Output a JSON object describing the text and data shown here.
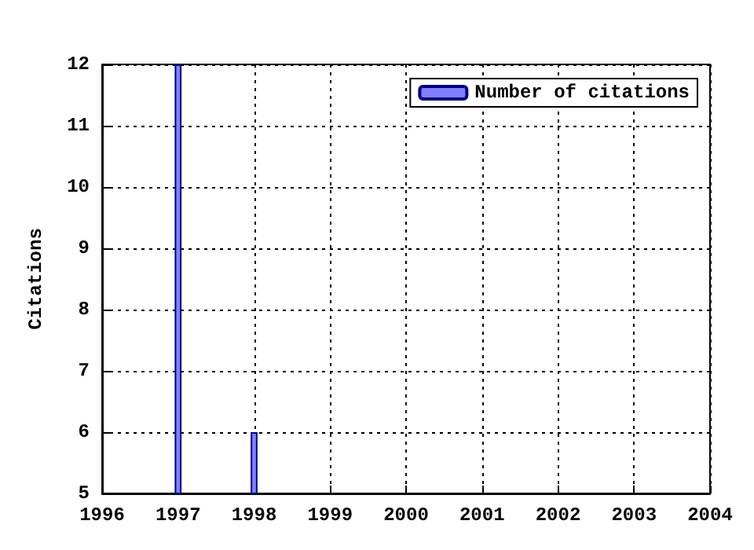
{
  "chart_data": {
    "type": "bar",
    "ylabel": "Citations",
    "x": [
      1997,
      1998
    ],
    "series": [
      {
        "name": "Number of citations",
        "color": "#8080ff",
        "values": [
          12,
          6
        ]
      }
    ],
    "xlim": [
      1996,
      2004
    ],
    "xticks": [
      1996,
      1997,
      1998,
      1999,
      2000,
      2001,
      2002,
      2003,
      2004
    ],
    "ylim": [
      5,
      12
    ],
    "yticks": [
      5,
      6,
      7,
      8,
      9,
      10,
      11,
      12
    ],
    "grid": true,
    "legend": "top right"
  }
}
